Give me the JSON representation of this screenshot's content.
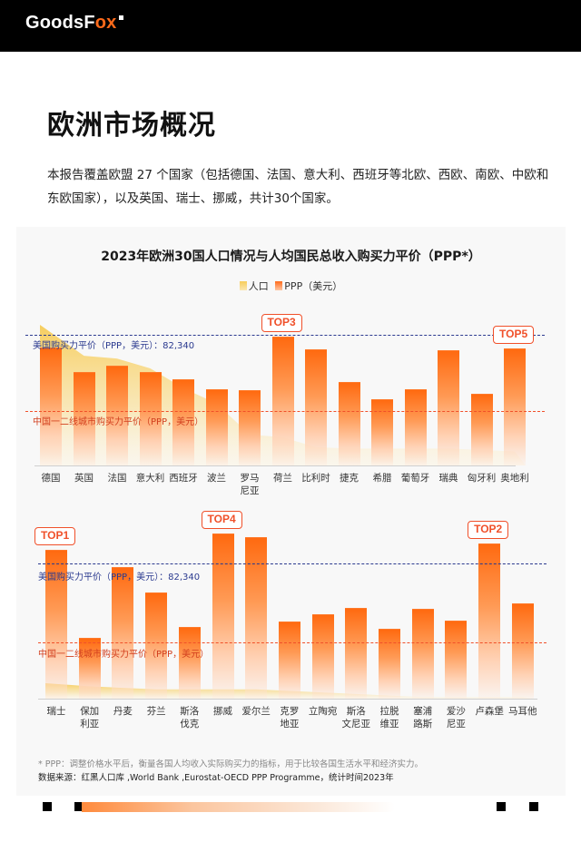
{
  "header": {
    "logo_main": "GoodsF",
    "logo_ox": "ox"
  },
  "page": {
    "title": "欧洲市场概况",
    "intro": "本报告覆盖欧盟 27 个国家（包括德国、法国、意大利、西班牙等北欧、西欧、南欧、中欧和东欧国家），以及英国、瑞士、挪威，共计30个国家。"
  },
  "chart": {
    "title": "2023年欧洲30国人口情况与人均国民总收入购买力平价（PPP*）",
    "legend": {
      "population": "人口",
      "ppp": "PPP（美元）"
    },
    "ref_us_label": "美国购买力平价（PPP，美元）：82,340",
    "ref_cn_label": "中国一二线城市购买力平价（PPP，美元）",
    "footnote": "* PPP：调整价格水平后，衡量各国人均收入实际购买力的指标，用于比较各国生活水平和经济实力。",
    "source": "数据来源：红黑人口库 ,World Bank ,Eurostat-OECD PPP Programme，统计时间2023年"
  },
  "chart_data": [
    {
      "type": "bar",
      "title": "2023年欧洲30国人口情况与人均国民总收入购买力平价（PPP*）— 上图",
      "categories": [
        "德国",
        "英国",
        "法国",
        "意大利",
        "西班牙",
        "波兰",
        "罗马\n尼亚",
        "荷兰",
        "比利时",
        "捷克",
        "希腊",
        "葡萄牙",
        "瑞典",
        "匈牙利",
        "奥地利"
      ],
      "series": [
        {
          "name": "PPP（美元）",
          "values": [
            74300,
            58900,
            62900,
            58900,
            54300,
            48000,
            47500,
            81200,
            73200,
            52600,
            41700,
            48000,
            72600,
            45200,
            73800
          ]
        },
        {
          "name": "人口",
          "type": "area",
          "relative_values": [
            1.0,
            0.78,
            0.76,
            0.69,
            0.55,
            0.44,
            0.22,
            0.2,
            0.13,
            0.12,
            0.12,
            0.12,
            0.12,
            0.11,
            0.1
          ]
        }
      ],
      "reference_lines": [
        {
          "label": "美国购买力平价（PPP，美元）：82,340",
          "value": 82340,
          "color": "#2b3a8f"
        },
        {
          "label": "中国一二线城市购买力平价（PPP，美元）",
          "value": 34300,
          "color": "#f0502a"
        }
      ],
      "annotations": [
        {
          "label": "TOP3",
          "category": "荷兰"
        },
        {
          "label": "TOP5",
          "category": "奥地利"
        }
      ],
      "xlabel": "",
      "ylabel": "",
      "grid": false,
      "legend_position": "top"
    },
    {
      "type": "bar",
      "title": "2023年欧洲30国人口情况与人均国民总收入购买力平价（PPP*）— 下图",
      "categories": [
        "瑞士",
        "保加\n利亚",
        "丹麦",
        "芬兰",
        "斯洛\n伐克",
        "挪威",
        "爱尔兰",
        "克罗\n地亚",
        "立陶宛",
        "斯洛\n文尼亚",
        "拉脱\n维亚",
        "塞浦\n路斯",
        "爱沙\n尼亚",
        "卢森堡",
        "马耳他"
      ],
      "series": [
        {
          "name": "PPP（美元）",
          "values": [
            90600,
            37000,
            80100,
            64700,
            43700,
            100600,
            98400,
            47000,
            51400,
            55300,
            42500,
            54700,
            47500,
            94500,
            58000
          ]
        },
        {
          "name": "人口",
          "type": "area",
          "relative_values": [
            0.1,
            0.08,
            0.07,
            0.06,
            0.06,
            0.06,
            0.06,
            0.05,
            0.04,
            0.03,
            0.02,
            0.01,
            0.01,
            0.01,
            0.01
          ]
        }
      ],
      "reference_lines": [
        {
          "label": "美国购买力平价（PPP，美元）：82,340",
          "value": 82340,
          "color": "#2b3a8f"
        },
        {
          "label": "中国一二线城市购买力平价（PPP，美元）",
          "value": 34300,
          "color": "#f0502a"
        }
      ],
      "annotations": [
        {
          "label": "TOP1",
          "category": "瑞士"
        },
        {
          "label": "TOP4",
          "category": "挪威"
        },
        {
          "label": "TOP2",
          "category": "卢森堡"
        }
      ],
      "xlabel": "",
      "ylabel": "",
      "grid": false,
      "legend_position": "top"
    }
  ],
  "colors": {
    "accent": "#ff6a1a",
    "us_line": "#2b3a8f",
    "cn_line": "#f0502a",
    "population": "#f7cd5a"
  }
}
